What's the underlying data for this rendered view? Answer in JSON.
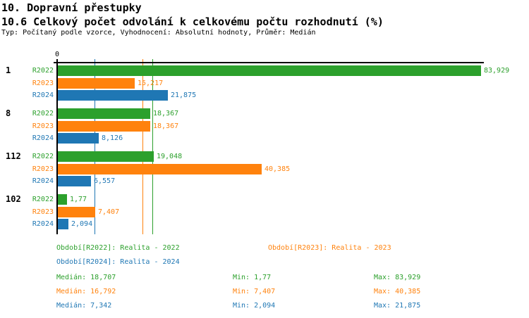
{
  "header": {
    "title": "10. Dopravní přestupky",
    "subtitle": "10.6 Celkový počet odvolání k celkovému počtu rozhodnutí (%)",
    "meta": "Typ: Počítaný podle vzorce, Vyhodnocení: Absolutní hodnoty, Průměr: Medián"
  },
  "colors": {
    "R2022": "#2ca02c",
    "R2023": "#ff820d",
    "R2024": "#1f77b4",
    "axis": "#000000"
  },
  "chart_data": {
    "type": "bar",
    "orientation": "horizontal",
    "value_unit": "%",
    "title": "10.6 Celkový počet odvolání k celkovému počtu rozhodnutí (%)",
    "axis": {
      "zero_label": "0",
      "x_min": 0,
      "x_max": 84.5,
      "grid": "median-lines-only"
    },
    "categories": [
      "1",
      "8",
      "112",
      "102"
    ],
    "series": [
      {
        "id": "R2022",
        "label": "R2022",
        "color": "#2ca02c",
        "values": [
          83.929,
          18.367,
          19.048,
          1.77
        ],
        "value_labels": [
          "83,929",
          "18,367",
          "19,048",
          "1,77"
        ],
        "median": 18.707
      },
      {
        "id": "R2023",
        "label": "R2023",
        "color": "#ff820d",
        "values": [
          15.217,
          18.367,
          40.385,
          7.407
        ],
        "value_labels": [
          "15,217",
          "18,367",
          "40,385",
          "7,407"
        ],
        "median": 16.792
      },
      {
        "id": "R2024",
        "label": "R2024",
        "color": "#1f77b4",
        "values": [
          21.875,
          8.126,
          6.557,
          2.094
        ],
        "value_labels": [
          "21,875",
          "8,126",
          "6,557",
          "2,094"
        ],
        "median": 7.342
      }
    ],
    "median_lines": [
      {
        "series": "R2022",
        "value": 18.707
      },
      {
        "series": "R2023",
        "value": 16.792
      },
      {
        "series": "R2024",
        "value": 7.342
      }
    ]
  },
  "legend": {
    "items": [
      {
        "series": "R2022",
        "text": "Období[R2022]: Realita - 2022"
      },
      {
        "series": "R2023",
        "text": "Období[R2023]: Realita - 2023"
      },
      {
        "series": "R2024",
        "text": "Období[R2024]: Realita - 2024"
      }
    ]
  },
  "stats": {
    "rows": [
      {
        "series": "R2022",
        "median": "Medián: 18,707",
        "min": "Min: 1,77",
        "max": "Max: 83,929"
      },
      {
        "series": "R2023",
        "median": "Medián: 16,792",
        "min": "Min: 7,407",
        "max": "Max: 40,385"
      },
      {
        "series": "R2024",
        "median": "Medián: 7,342",
        "min": "Min: 2,094",
        "max": "Max: 21,875"
      }
    ]
  }
}
